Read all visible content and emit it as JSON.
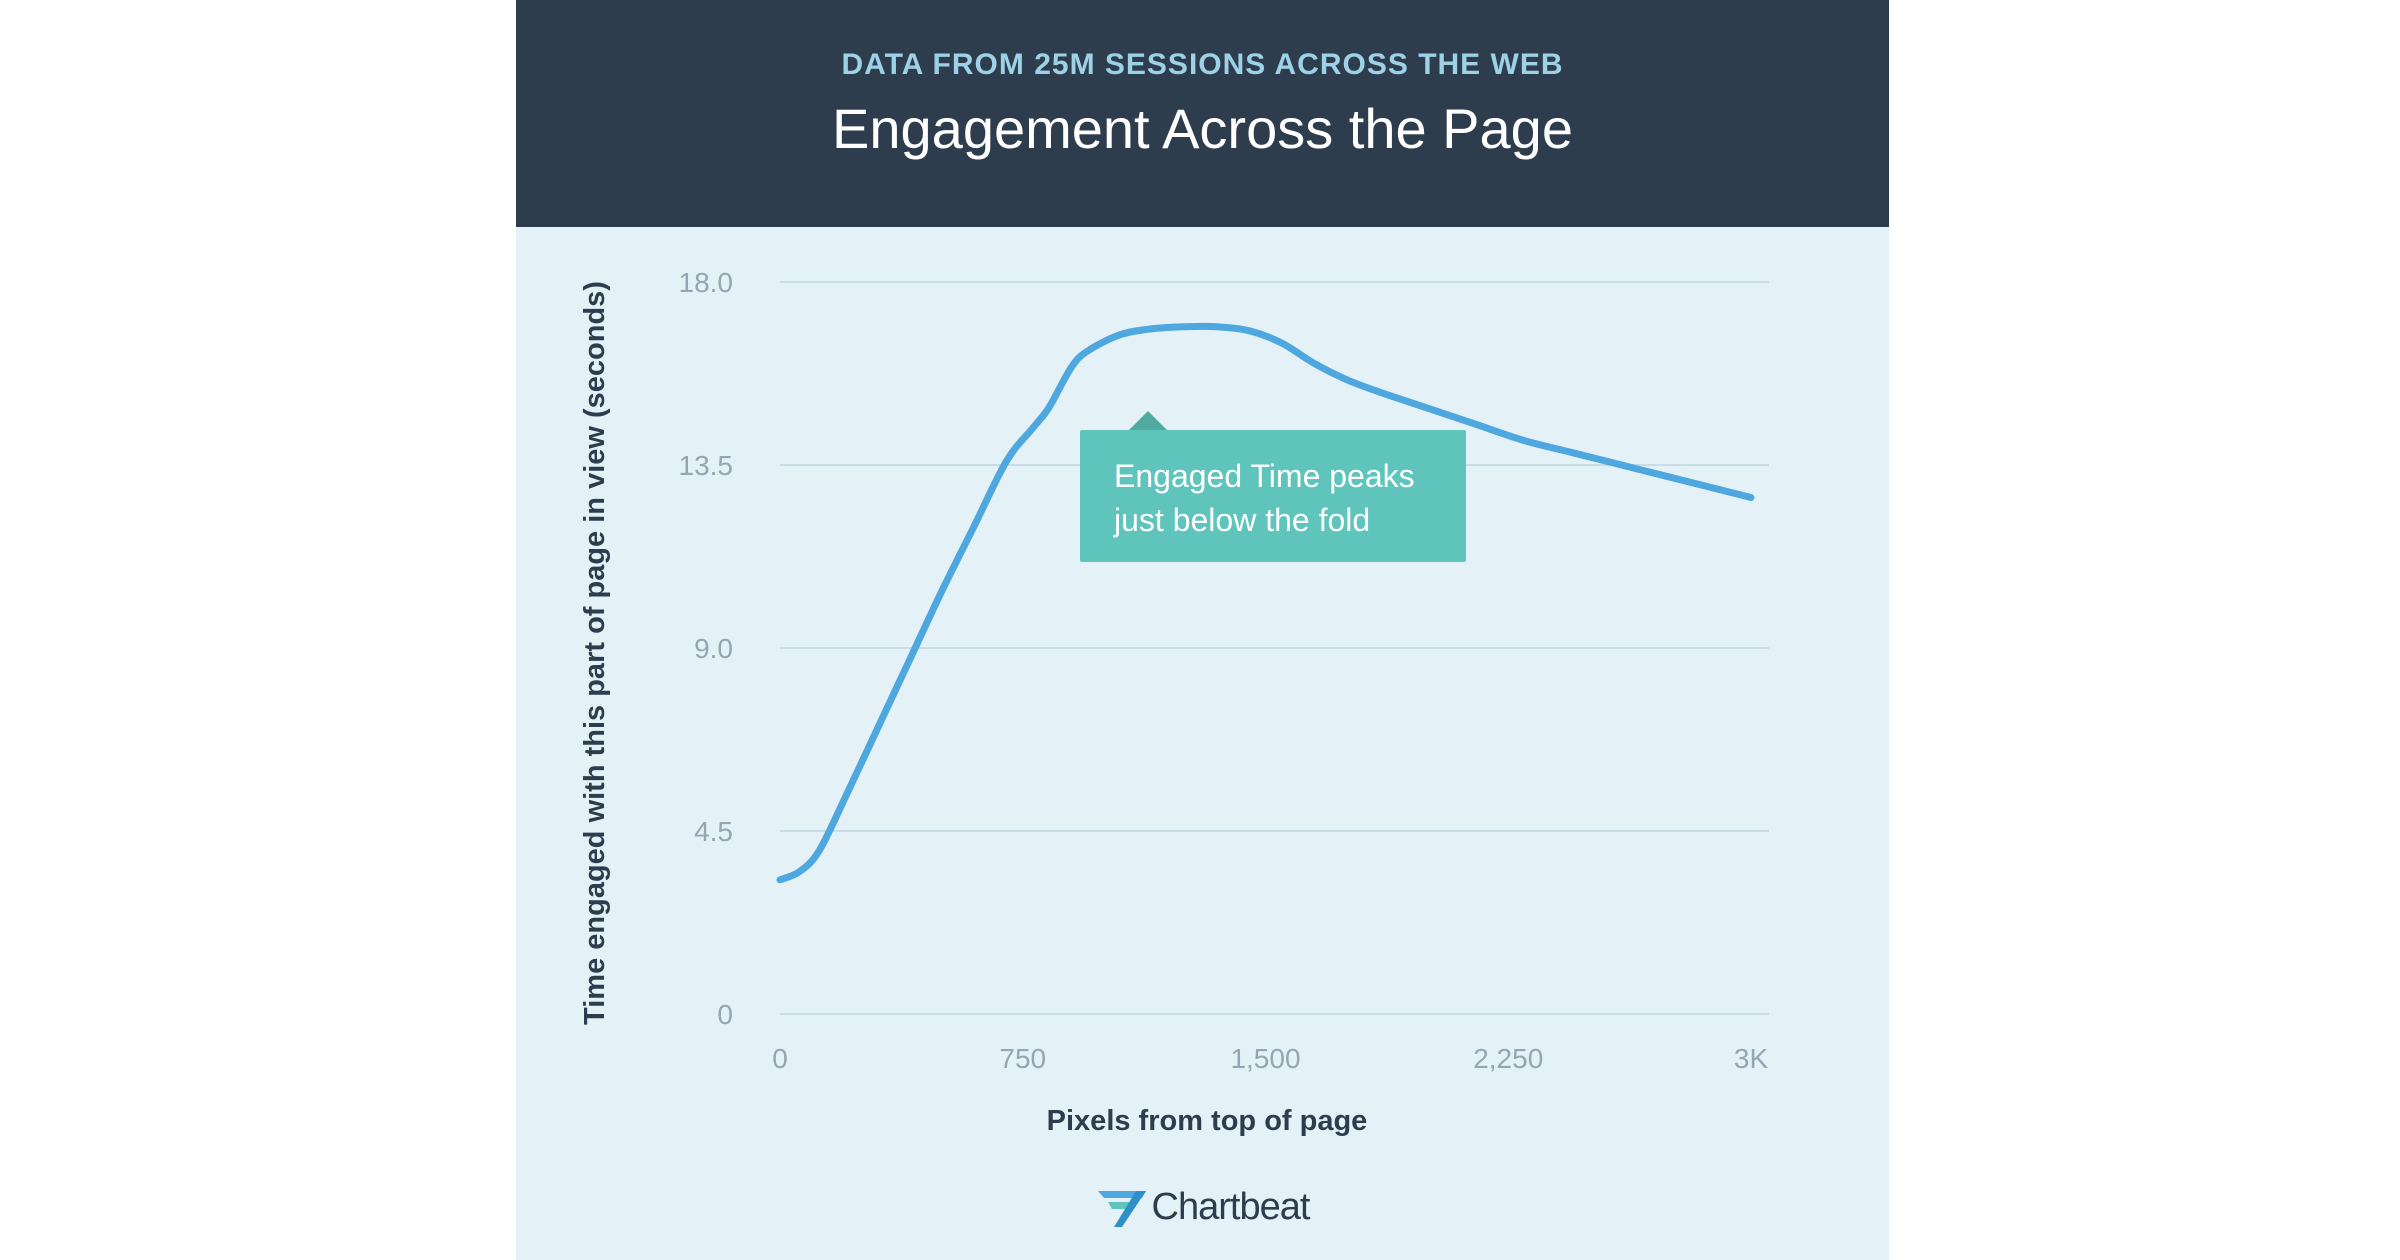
{
  "header": {
    "subtitle": "DATA FROM 25M SESSIONS ACROSS THE WEB",
    "title": "Engagement Across the Page"
  },
  "callout": {
    "line1": "Engaged Time peaks",
    "line2": "just below the fold"
  },
  "brand": {
    "name": "Chartbeat"
  },
  "colors": {
    "header_bg": "#2e3d4d",
    "panel_bg": "#e4f2f8",
    "line": "#4fa7df",
    "callout": "#5ec4bc"
  },
  "chart_data": {
    "type": "line",
    "title": "Engagement Across the Page",
    "subtitle": "DATA FROM 25M SESSIONS ACROSS THE WEB",
    "xlabel": "Pixels from top of page",
    "ylabel": "Time engaged with this part of page in view (seconds)",
    "xlim": [
      0,
      3000
    ],
    "ylim": [
      0,
      18
    ],
    "x_ticks": [
      0,
      750,
      1500,
      2250,
      3000
    ],
    "x_tick_labels": [
      "0",
      "750",
      "1,500",
      "2,250",
      "3K"
    ],
    "y_ticks": [
      0,
      4.5,
      9,
      13.5,
      18
    ],
    "y_tick_labels": [
      "0",
      "4.5",
      "9.0",
      "13.5",
      "18.0"
    ],
    "grid": true,
    "legend": "none",
    "series": [
      {
        "x": [
          0,
          60,
          120,
          200,
          300,
          400,
          500,
          600,
          700,
          780,
          830,
          900,
          950,
          1050,
          1150,
          1250,
          1350,
          1450,
          1550,
          1650,
          1750,
          1850,
          2000,
          2150,
          2300,
          2450,
          2600,
          2750,
          2900,
          3000
        ],
        "y": [
          3.3,
          3.5,
          4.0,
          5.3,
          7.0,
          8.7,
          10.4,
          12.0,
          13.6,
          14.4,
          14.9,
          15.9,
          16.3,
          16.7,
          16.85,
          16.9,
          16.9,
          16.8,
          16.5,
          16.0,
          15.6,
          15.3,
          14.9,
          14.5,
          14.1,
          13.8,
          13.5,
          13.2,
          12.9,
          12.7
        ]
      }
    ]
  }
}
